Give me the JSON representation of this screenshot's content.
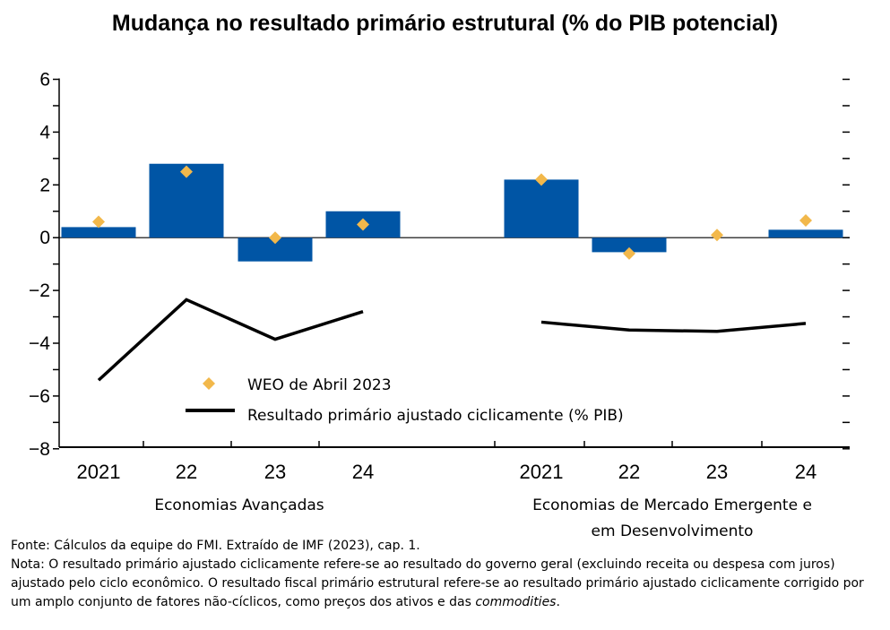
{
  "title": "Mudança no resultado primário estrutural (% do PIB potencial)",
  "chart_data": {
    "type": "bar",
    "categories": [
      "2021",
      "22",
      "23",
      "24",
      "2021",
      "22",
      "23",
      "24"
    ],
    "groups": [
      "Economias Avançadas",
      "Economias de Mercado Emergente e em Desenvolvimento"
    ],
    "ylim": [
      -8,
      6
    ],
    "yticks": [
      6,
      4,
      2,
      0,
      -2,
      -4,
      -6,
      -8
    ],
    "ytick_labels": [
      "6",
      "4",
      "2",
      "0",
      "−2",
      "−4",
      "−6",
      "−8"
    ],
    "series": [
      {
        "name": "",
        "kind": "bar",
        "color": "#0055a5",
        "values": [
          0.4,
          2.8,
          -0.9,
          1.0,
          2.2,
          -0.55,
          null,
          0.3
        ]
      },
      {
        "name": "WEO de Abril 2023",
        "kind": "marker",
        "color": "#f2b84b",
        "values": [
          0.6,
          2.5,
          0.0,
          0.5,
          2.2,
          -0.6,
          0.1,
          0.65
        ]
      },
      {
        "name": "Resultado primário ajustado ciclicamente (% PIB)",
        "kind": "line",
        "color": "#000000",
        "values": [
          -5.4,
          -2.35,
          -3.85,
          -2.8,
          -3.2,
          -3.5,
          -3.55,
          -3.25
        ]
      }
    ],
    "grid": false
  },
  "legend": {
    "marker_label": "WEO de Abril 2023",
    "line_label": "Resultado primário ajustado ciclicamente (% PIB)"
  },
  "notes": {
    "source": "Fonte: Cálculos da equipe do FMI. Extraído de IMF (2023), cap. 1.",
    "note_prefix": "Nota: O resultado primário ajustado ciclicamente refere-se ao resultado do governo geral (excluindo receita ou despesa com juros) ajustado pelo ciclo econômico. O resultado fiscal primário estrutural refere-se ao resultado primário ajustado ciclicamente corrigido por um amplo conjunto de fatores não-cíclicos, como preços dos ativos e das ",
    "note_italic": "commodities",
    "note_suffix": "."
  }
}
